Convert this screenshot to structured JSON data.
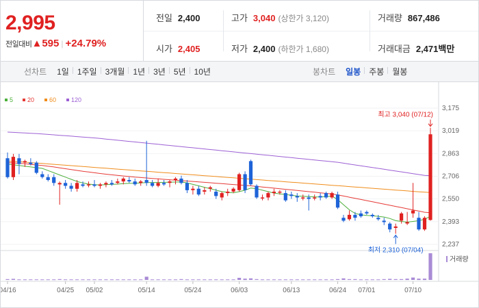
{
  "quote": {
    "price": "2,995",
    "change_label": "전일대비",
    "change_arrow": "▲",
    "change_amount": "595",
    "change_percent": "+24.79%"
  },
  "stats": {
    "prev_close": {
      "label": "전일",
      "value": "2,400"
    },
    "high": {
      "label": "고가",
      "value": "3,040",
      "sub": "(상한가 3,120)"
    },
    "volume": {
      "label": "거래량",
      "value": "867,486"
    },
    "open": {
      "label": "시가",
      "value": "2,405"
    },
    "low": {
      "label": "저가",
      "value": "2,400",
      "sub": "(하한가 1,680)"
    },
    "amount": {
      "label": "거래대금",
      "value": "2,471",
      "unit": "백만"
    }
  },
  "line_tabs": {
    "label": "선차트",
    "items": [
      "1일",
      "1주일",
      "3개월",
      "1년",
      "3년",
      "5년",
      "10년"
    ]
  },
  "candle_tabs": {
    "label": "봉차트",
    "items": [
      "일봉",
      "주봉",
      "월봉"
    ],
    "active": "일봉"
  },
  "colors": {
    "up": "#e02121",
    "down": "#1e63d8",
    "ma5": "#4caf3a",
    "ma20": "#e53935",
    "ma60": "#f08c1a",
    "ma120": "#9c5fd4"
  },
  "chart_data": {
    "type": "candlestick",
    "ylim": [
      2237,
      3175
    ],
    "y_ticks": [
      "3,175",
      "3,019",
      "2,863",
      "2,706",
      "2,550",
      "2,393",
      "2,237"
    ],
    "x_ticks": [
      "04/16",
      "04/25",
      "05/02",
      "05/14",
      "05/24",
      "06/03",
      "06/13",
      "06/24",
      "07/01",
      "07/10"
    ],
    "x_tick_index": [
      0,
      10,
      15,
      24,
      32,
      40,
      49,
      57,
      62,
      70
    ],
    "legend": [
      "5",
      "20",
      "60",
      "120"
    ],
    "high_annotation": "최고 3,040 (07/12)",
    "low_annotation": "최저 2,310 (07/04)",
    "volume_label": "거래량",
    "candles": [
      [
        2830,
        2870,
        2690,
        2700
      ],
      [
        2700,
        2860,
        2680,
        2840
      ],
      [
        2830,
        2860,
        2720,
        2790
      ],
      [
        2800,
        2820,
        2770,
        2810
      ],
      [
        2800,
        2830,
        2780,
        2790
      ],
      [
        2800,
        2810,
        2720,
        2730
      ],
      [
        2720,
        2740,
        2690,
        2700
      ],
      [
        2700,
        2720,
        2670,
        2680
      ],
      [
        2700,
        2720,
        2640,
        2660
      ],
      [
        2650,
        2670,
        2510,
        2660
      ],
      [
        2660,
        2680,
        2620,
        2640
      ],
      [
        2640,
        2660,
        2600,
        2620
      ],
      [
        2620,
        2680,
        2600,
        2660
      ],
      [
        2650,
        2670,
        2630,
        2640
      ],
      [
        2650,
        2670,
        2630,
        2650
      ],
      [
        2650,
        2680,
        2630,
        2640
      ],
      [
        2640,
        2660,
        2620,
        2650
      ],
      [
        2650,
        2670,
        2630,
        2660
      ],
      [
        2660,
        2680,
        2640,
        2650
      ],
      [
        2660,
        2690,
        2650,
        2670
      ],
      [
        2670,
        2700,
        2650,
        2690
      ],
      [
        2680,
        2700,
        2660,
        2670
      ],
      [
        2670,
        2690,
        2640,
        2650
      ],
      [
        2660,
        2680,
        2640,
        2670
      ],
      [
        2680,
        2950,
        2640,
        2660
      ],
      [
        2660,
        2680,
        2630,
        2640
      ],
      [
        2640,
        2690,
        2630,
        2660
      ],
      [
        2660,
        2680,
        2640,
        2650
      ],
      [
        2660,
        2680,
        2630,
        2670
      ],
      [
        2680,
        2700,
        2650,
        2690
      ],
      [
        2690,
        2710,
        2650,
        2660
      ],
      [
        2660,
        2680,
        2590,
        2610
      ],
      [
        2610,
        2640,
        2580,
        2620
      ],
      [
        2620,
        2640,
        2570,
        2580
      ],
      [
        2600,
        2630,
        2580,
        2610
      ],
      [
        2620,
        2640,
        2600,
        2630
      ],
      [
        2600,
        2620,
        2550,
        2570
      ],
      [
        2560,
        2600,
        2540,
        2590
      ],
      [
        2590,
        2620,
        2570,
        2600
      ],
      [
        2600,
        2630,
        2590,
        2620
      ],
      [
        2610,
        2730,
        2600,
        2720
      ],
      [
        2720,
        2740,
        2590,
        2610
      ],
      [
        2810,
        2820,
        2640,
        2650
      ],
      [
        2640,
        2650,
        2550,
        2560
      ],
      [
        2560,
        2580,
        2540,
        2560
      ],
      [
        2560,
        2600,
        2540,
        2590
      ],
      [
        2590,
        2620,
        2570,
        2600
      ],
      [
        2600,
        2610,
        2580,
        2600
      ],
      [
        2590,
        2610,
        2530,
        2540
      ],
      [
        2580,
        2600,
        2550,
        2570
      ],
      [
        2570,
        2590,
        2530,
        2560
      ],
      [
        2560,
        2580,
        2540,
        2560
      ],
      [
        2560,
        2580,
        2470,
        2550
      ],
      [
        2560,
        2580,
        2540,
        2560
      ],
      [
        2570,
        2590,
        2540,
        2560
      ],
      [
        2590,
        2600,
        2550,
        2560
      ],
      [
        2560,
        2600,
        2550,
        2590
      ],
      [
        2580,
        2600,
        2480,
        2490
      ],
      [
        2420,
        2440,
        2390,
        2400
      ],
      [
        2410,
        2470,
        2400,
        2440
      ],
      [
        2440,
        2460,
        2400,
        2420
      ],
      [
        2450,
        2470,
        2420,
        2430
      ],
      [
        2460,
        2470,
        2440,
        2450
      ],
      [
        2440,
        2450,
        2420,
        2430
      ],
      [
        2420,
        2440,
        2400,
        2410
      ],
      [
        2400,
        2420,
        2370,
        2390
      ],
      [
        2380,
        2390,
        2320,
        2340
      ],
      [
        2350,
        2380,
        2310,
        2360
      ],
      [
        2400,
        2460,
        2380,
        2450
      ],
      [
        2380,
        2460,
        2370,
        2390
      ],
      [
        2450,
        2660,
        2420,
        2470
      ],
      [
        2420,
        2460,
        2330,
        2340
      ],
      [
        2340,
        2430,
        2330,
        2420
      ],
      [
        2405,
        3040,
        2400,
        2995
      ]
    ],
    "ma5": [
      2790,
      2785,
      2780,
      2775,
      2770,
      2765,
      2760,
      2745,
      2730,
      2715,
      2700,
      2685,
      2670,
      2660,
      2652,
      2648,
      2646,
      2648,
      2650,
      2652,
      2655,
      2657,
      2658,
      2660,
      2662,
      2663,
      2663,
      2664,
      2665,
      2666,
      2667,
      2660,
      2650,
      2640,
      2630,
      2620,
      2610,
      2600,
      2595,
      2592,
      2600,
      2610,
      2625,
      2620,
      2610,
      2600,
      2590,
      2585,
      2580,
      2575,
      2570,
      2568,
      2566,
      2564,
      2563,
      2565,
      2570,
      2545,
      2510,
      2475,
      2450,
      2440,
      2436,
      2434,
      2430,
      2425,
      2415,
      2400,
      2395,
      2390,
      2395,
      2400,
      2410,
      2430
    ],
    "ma20": [
      2800,
      2798,
      2795,
      2792,
      2788,
      2784,
      2780,
      2775,
      2770,
      2764,
      2758,
      2752,
      2746,
      2740,
      2735,
      2730,
      2725,
      2720,
      2716,
      2712,
      2708,
      2704,
      2700,
      2697,
      2694,
      2691,
      2688,
      2685,
      2682,
      2679,
      2676,
      2673,
      2670,
      2667,
      2664,
      2661,
      2658,
      2655,
      2652,
      2649,
      2646,
      2643,
      2640,
      2636,
      2632,
      2628,
      2624,
      2620,
      2616,
      2612,
      2608,
      2604,
      2600,
      2596,
      2592,
      2588,
      2584,
      2578,
      2570,
      2562,
      2554,
      2546,
      2538,
      2530,
      2522,
      2514,
      2506,
      2498,
      2490,
      2482,
      2474,
      2466,
      2458,
      2455
    ],
    "ma60": [
      2810,
      2808,
      2806,
      2803,
      2800,
      2797,
      2794,
      2791,
      2788,
      2785,
      2782,
      2779,
      2776,
      2773,
      2770,
      2767,
      2764,
      2761,
      2758,
      2755,
      2752,
      2749,
      2746,
      2743,
      2740,
      2737,
      2734,
      2731,
      2728,
      2725,
      2722,
      2719,
      2716,
      2713,
      2710,
      2707,
      2704,
      2701,
      2698,
      2695,
      2692,
      2689,
      2686,
      2683,
      2680,
      2677,
      2674,
      2671,
      2668,
      2665,
      2662,
      2659,
      2656,
      2653,
      2650,
      2647,
      2644,
      2641,
      2638,
      2635,
      2632,
      2629,
      2626,
      2623,
      2620,
      2617,
      2614,
      2611,
      2608,
      2605,
      2602,
      2599,
      2596,
      2594
    ],
    "ma120": [
      3010,
      3008,
      3006,
      3004,
      3002,
      3000,
      2997,
      2994,
      2991,
      2988,
      2985,
      2982,
      2979,
      2976,
      2973,
      2970,
      2966,
      2962,
      2958,
      2954,
      2950,
      2946,
      2942,
      2938,
      2934,
      2930,
      2926,
      2922,
      2918,
      2914,
      2910,
      2906,
      2902,
      2898,
      2894,
      2890,
      2886,
      2882,
      2878,
      2874,
      2870,
      2866,
      2862,
      2858,
      2854,
      2850,
      2846,
      2842,
      2838,
      2834,
      2830,
      2826,
      2822,
      2818,
      2814,
      2810,
      2806,
      2802,
      2796,
      2790,
      2784,
      2778,
      2772,
      2766,
      2760,
      2754,
      2748,
      2742,
      2736,
      2730,
      2724,
      2718,
      2712,
      2710
    ],
    "volume": [
      0.03,
      0.04,
      0.02,
      0.02,
      0.02,
      0.02,
      0.02,
      0.02,
      0.02,
      0.03,
      0.02,
      0.02,
      0.02,
      0.02,
      0.02,
      0.02,
      0.02,
      0.02,
      0.02,
      0.02,
      0.02,
      0.02,
      0.02,
      0.02,
      0.12,
      0.02,
      0.02,
      0.02,
      0.02,
      0.02,
      0.03,
      0.02,
      0.02,
      0.02,
      0.02,
      0.02,
      0.02,
      0.02,
      0.02,
      0.02,
      0.08,
      0.05,
      0.06,
      0.03,
      0.02,
      0.02,
      0.02,
      0.02,
      0.02,
      0.02,
      0.02,
      0.02,
      0.02,
      0.02,
      0.02,
      0.02,
      0.02,
      0.03,
      0.06,
      0.03,
      0.03,
      0.02,
      0.02,
      0.02,
      0.02,
      0.03,
      0.04,
      0.03,
      0.03,
      0.05,
      0.09,
      0.05,
      0.05,
      1.0
    ]
  }
}
